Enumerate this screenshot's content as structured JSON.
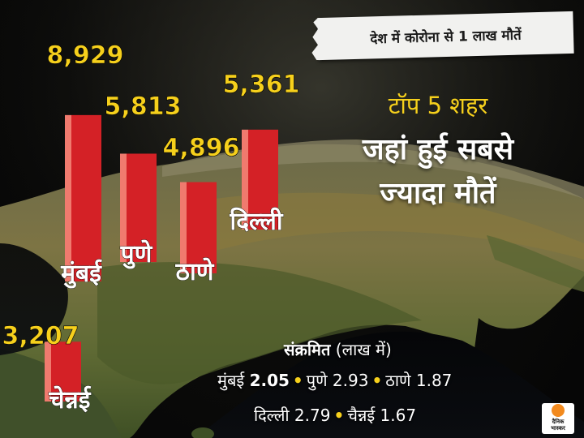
{
  "banner": "देश में कोरोना से 1 लाख मौतें",
  "subtitle": "टॉप 5 शहर",
  "title_line1": "जहां हुई सबसे",
  "title_line2": "ज्यादा मौतें",
  "infected": {
    "heading": "संक्रमित",
    "unit": "(लाख में)",
    "items": [
      {
        "city": "मुंबई",
        "value": "2.05"
      },
      {
        "city": "पुणे",
        "value": "2.93"
      },
      {
        "city": "ठाणे",
        "value": "1.87"
      },
      {
        "city": "दिल्ली",
        "value": "2.79"
      },
      {
        "city": "चैन्नई",
        "value": "1.67"
      }
    ]
  },
  "logo": {
    "line1": "दैनिक",
    "line2": "भास्कर"
  },
  "colors": {
    "bar": "#d42126",
    "value_label": "#f6d01c",
    "title": "#ffffff"
  },
  "chart_data": {
    "type": "bar",
    "categories": [
      "मुंबई",
      "पुणे",
      "ठाणे",
      "दिल्ली",
      "चेन्नई"
    ],
    "values": [
      8929,
      5813,
      4896,
      5361,
      3207
    ],
    "value_labels": [
      "8,929",
      "5,813",
      "4,896",
      "5,361",
      "3,207"
    ]
  }
}
